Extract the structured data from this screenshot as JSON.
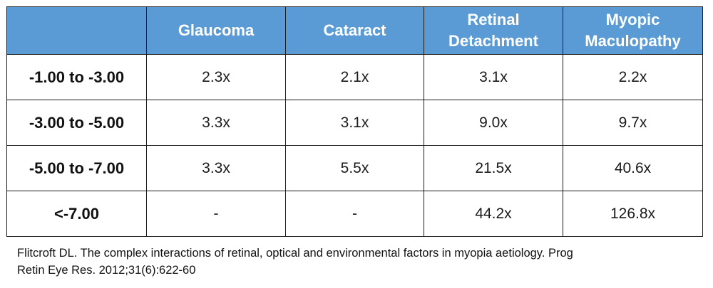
{
  "table": {
    "headers": [
      "",
      "Glaucoma",
      "Cataract",
      "Retinal\nDetachment",
      "Myopic\nMaculopathy"
    ],
    "rows": [
      {
        "label": "-1.00 to -3.00",
        "values": [
          "2.3x",
          "2.1x",
          "3.1x",
          "2.2x"
        ]
      },
      {
        "label": "-3.00 to -5.00",
        "values": [
          "3.3x",
          "3.1x",
          "9.0x",
          "9.7x"
        ]
      },
      {
        "label": "-5.00 to -7.00",
        "values": [
          "3.3x",
          "5.5x",
          "21.5x",
          "40.6x"
        ]
      },
      {
        "label": "<-7.00",
        "values": [
          "-",
          "-",
          "44.2x",
          "126.8x"
        ]
      }
    ]
  },
  "caption": {
    "line1": "Flitcroft DL. The complex interactions of retinal, optical and environmental factors in myopia aetiology. Prog",
    "line2": "Retin Eye Res. 2012;31(6):622-60"
  },
  "colors": {
    "header_bg": "#5b9bd5",
    "header_text": "#ffffff",
    "border": "#1a1a1a"
  }
}
